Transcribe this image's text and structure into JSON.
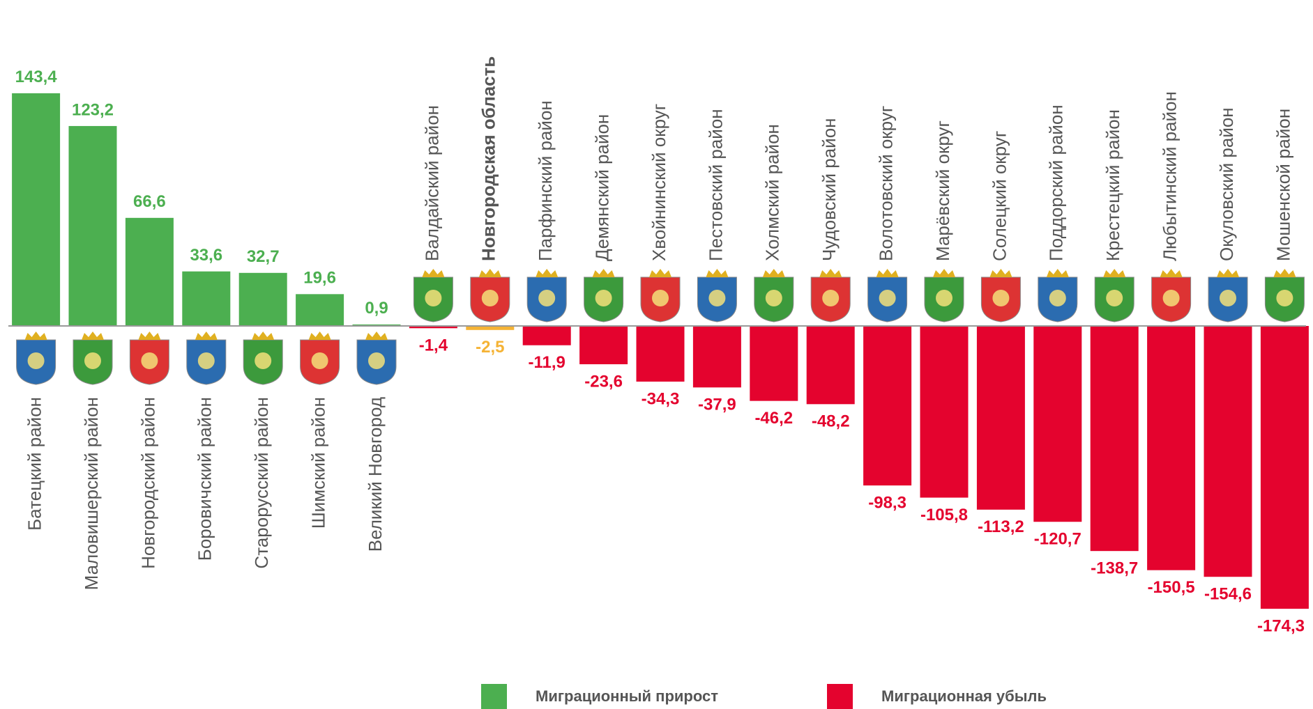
{
  "chart_data": {
    "type": "bar",
    "categories": [
      "Батецкий район",
      "Маловишерский район",
      "Новгородский район",
      "Боровичский район",
      "Старорусский район",
      "Шимский район",
      "Великий Новгород",
      "Валдайский район",
      "Новгородская  область",
      "Парфинский район",
      "Демянский район",
      "Хвойнинский округ",
      "Пестовский район",
      "Холмский район",
      "Чудовский район",
      "Волотовский округ",
      "Марёвский округ",
      "Солецкий округ",
      "Поддорский район",
      "Крестецкий район",
      "Любытинский район",
      "Окуловский район",
      "Мошенской район"
    ],
    "values": [
      143.4,
      123.2,
      66.6,
      33.6,
      32.7,
      19.6,
      0.9,
      -1.4,
      -2.5,
      -11.9,
      -23.6,
      -34.3,
      -37.9,
      -46.2,
      -48.2,
      -98.3,
      -105.8,
      -113.2,
      -120.7,
      -138.7,
      -150.5,
      -154.6,
      -174.3
    ],
    "value_labels": [
      "143,4",
      "123,2",
      "66,6",
      "33,6",
      "32,7",
      "19,6",
      "0,9",
      "-1,4",
      "-2,5",
      "-11,9",
      "-23,6",
      "-34,3",
      "-37,9",
      "-46,2",
      "-48,2",
      "-98,3",
      "-105,8",
      "-113,2",
      "-120,7",
      "-138,7",
      "-150,5",
      "-154,6",
      "-174,3"
    ],
    "colors": [
      "#4caf50",
      "#4caf50",
      "#4caf50",
      "#4caf50",
      "#4caf50",
      "#4caf50",
      "#4caf50",
      "#e4032e",
      "#f5b335",
      "#e4032e",
      "#e4032e",
      "#e4032e",
      "#e4032e",
      "#e4032e",
      "#e4032e",
      "#e4032e",
      "#e4032e",
      "#e4032e",
      "#e4032e",
      "#e4032e",
      "#e4032e",
      "#e4032e",
      "#e4032e"
    ],
    "highlight_index": 8,
    "legend": [
      {
        "name": "Миграционный прирост",
        "color": "#4caf50"
      },
      {
        "name": "Миграционная убыль",
        "color": "#e4032e"
      }
    ]
  }
}
